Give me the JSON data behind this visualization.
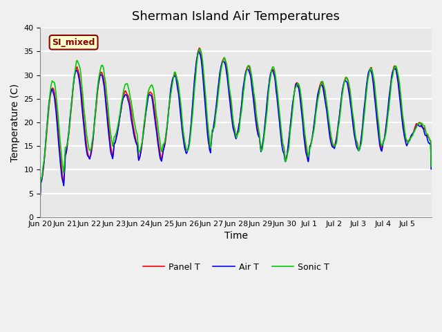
{
  "title": "Sherman Island Air Temperatures",
  "xlabel": "Time",
  "ylabel": "Temperature (C)",
  "ylim": [
    0,
    40
  ],
  "yticks": [
    0,
    5,
    10,
    15,
    20,
    25,
    30,
    35,
    40
  ],
  "annotation_text": "SI_mixed",
  "annotation_color": "#8B0000",
  "annotation_bg": "#FFFFCC",
  "legend_labels": [
    "Panel T",
    "Air T",
    "Sonic T"
  ],
  "line_colors": [
    "#FF0000",
    "#0000FF",
    "#00CC00"
  ],
  "background_color": "#E8E8E8",
  "grid_color": "#FFFFFF",
  "title_fontsize": 13,
  "axis_fontsize": 10,
  "tick_fontsize": 8,
  "n_days": 16,
  "x_tick_labels": [
    "Jun 20",
    "Jun 21",
    "Jun 22",
    "Jun 23",
    "Jun 24",
    "Jun 25",
    "Jun 26",
    "Jun 27",
    "Jun 28",
    "Jun 29",
    "Jun 30",
    "Jul 1",
    "Jul 2",
    "Jul 3",
    "Jul 4",
    "Jul 5"
  ],
  "day_maxes": [
    27.5,
    31.5,
    30.5,
    26.5,
    26.5,
    30.5,
    35.5,
    33.5,
    32.0,
    31.5,
    28.5,
    28.5,
    29.5,
    31.5,
    32.0,
    20.0
  ],
  "day_mins": [
    7.0,
    13.0,
    12.5,
    15.5,
    12.0,
    14.0,
    14.0,
    18.0,
    17.0,
    14.0,
    12.0,
    15.0,
    15.0,
    14.0,
    16.0,
    16.0
  ]
}
